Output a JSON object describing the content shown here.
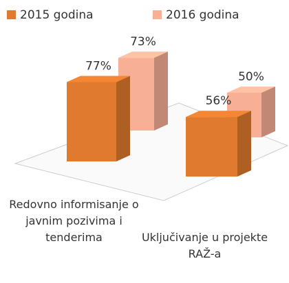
{
  "chart_data": {
    "type": "bar3d",
    "categories": [
      "Redovno informisanje o javnim pozivima i tenderima",
      "Uključivanje u projekte RAŽ-a"
    ],
    "series": [
      {
        "name": "2015 godina",
        "color": "#df7a2e",
        "values": [
          77,
          56
        ],
        "value_labels": [
          "77%",
          "56%"
        ]
      },
      {
        "name": "2016 godina",
        "color": "#f7b096",
        "values": [
          73,
          50
        ],
        "value_labels": [
          "73%",
          "50%"
        ]
      }
    ],
    "legend": "top"
  }
}
